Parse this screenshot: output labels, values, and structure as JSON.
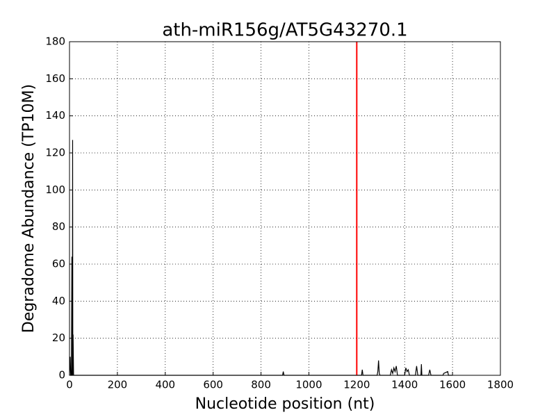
{
  "chart_data": {
    "type": "line",
    "title": "ath-miR156g/AT5G43270.1",
    "x_label": "Nucleotide position (nt)",
    "y_label": "Degradome Abundance (TP10M)",
    "series": [
      {
        "color": "#000000",
        "x": [
          0,
          3,
          5,
          8,
          10,
          11,
          12,
          13,
          14,
          15,
          17,
          890,
          893,
          896,
          1220,
          1223,
          1226,
          1285,
          1288,
          1291,
          1294,
          1297,
          1340,
          1345,
          1350,
          1355,
          1360,
          1365,
          1370,
          1400,
          1405,
          1410,
          1415,
          1420,
          1445,
          1450,
          1455,
          1468,
          1470,
          1472,
          1500,
          1505,
          1510,
          1560,
          1563,
          1580,
          1583,
          1600
        ],
        "values": [
          0,
          10,
          0,
          0,
          64,
          0,
          0,
          127,
          0,
          22,
          0,
          0,
          2,
          0,
          0,
          3,
          0,
          0,
          2,
          8,
          1,
          0,
          0,
          3,
          1,
          4,
          2,
          5,
          0,
          0,
          4,
          2,
          3,
          0,
          0,
          5,
          0,
          0,
          6,
          0,
          0,
          3,
          0,
          0,
          1,
          2,
          0,
          0
        ]
      },
      {
        "color": "#ff0000",
        "x": [
          1200,
          1200
        ],
        "values": [
          0,
          180
        ]
      }
    ],
    "xlim": [
      0,
      1800
    ],
    "xticks": [
      0,
      200,
      400,
      600,
      800,
      1000,
      1200,
      1400,
      1600,
      1800
    ],
    "ylim": [
      0,
      180
    ],
    "yticks": [
      0,
      20,
      40,
      60,
      80,
      100,
      120,
      140,
      160,
      180
    ],
    "grid": true
  }
}
